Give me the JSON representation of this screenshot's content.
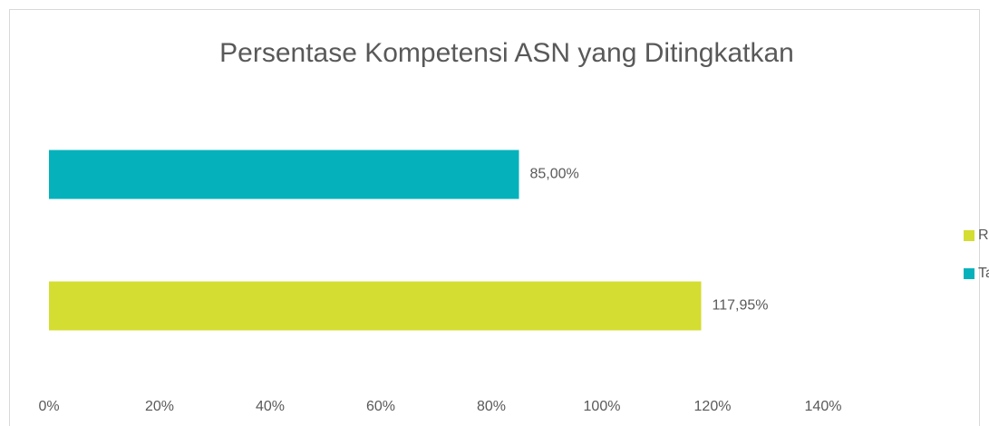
{
  "chart_data": {
    "type": "bar",
    "orientation": "horizontal",
    "title": "Persentase Kompetensi ASN yang Ditingkatkan",
    "categories": [
      null
    ],
    "series": [
      {
        "name": "Realisasi",
        "color": "#d4dd31",
        "values": [
          117.95
        ],
        "value_labels": [
          "117,95%"
        ]
      },
      {
        "name": "Target",
        "color": "#05b2bb",
        "values": [
          85
        ],
        "value_labels": [
          "85,00%"
        ]
      }
    ],
    "xlim": [
      0,
      140
    ],
    "xticks": [
      {
        "value": 0,
        "label": "0%"
      },
      {
        "value": 20,
        "label": "20%"
      },
      {
        "value": 40,
        "label": "40%"
      },
      {
        "value": 60,
        "label": "60%"
      },
      {
        "value": 80,
        "label": "80%"
      },
      {
        "value": 100,
        "label": "100%"
      },
      {
        "value": 120,
        "label": "120%"
      },
      {
        "value": 140,
        "label": "140%"
      }
    ],
    "grid": false,
    "legend": "right"
  }
}
